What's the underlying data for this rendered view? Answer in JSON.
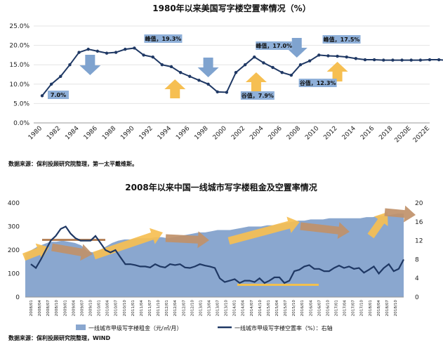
{
  "chart_data": [
    {
      "type": "line",
      "title": "1980年以来美国写字楼空置率情况（%）",
      "ylim": [
        0,
        25
      ],
      "y_ticks": [
        "0.0%",
        "5.0%",
        "10.0%",
        "15.0%",
        "20.0%",
        "25.0%"
      ],
      "x_tick_labels": [
        "1980",
        "1982",
        "1984",
        "1986",
        "1988",
        "1990",
        "1992",
        "1994",
        "1996",
        "1998",
        "2000",
        "2002",
        "2004",
        "2006",
        "2008",
        "2010",
        "2012",
        "2014",
        "2016",
        "2018",
        "2020E",
        "2022E"
      ],
      "series": [
        {
          "values": [
            7.0,
            10.0,
            12.0,
            15.0,
            18.2,
            19.0,
            18.5,
            18.0,
            18.2,
            19.0,
            19.3,
            17.5,
            17.0,
            15.0,
            14.5,
            13.0,
            12.0,
            11.0,
            10.0,
            8.0,
            7.9,
            13.0,
            15.0,
            17.0,
            15.5,
            14.3,
            13.0,
            12.3,
            15.0,
            16.0,
            17.5,
            17.3,
            17.2,
            17.0,
            16.6,
            16.3,
            16.3,
            16.2,
            16.2,
            16.2,
            16.2,
            16.2,
            16.3,
            16.3,
            16.1
          ]
        }
      ],
      "point_spacing": "half-year",
      "annotations": [
        {
          "text": "7.0%",
          "x": "1980"
        },
        {
          "text": "峰值，19.3%",
          "x": "1990"
        },
        {
          "text": "谷值，7.9%",
          "x": "2000"
        },
        {
          "text": "峰值，17.0%",
          "x": "2003"
        },
        {
          "text": "谷值，12.3%",
          "x": "2008"
        },
        {
          "text": "峰值，17.5%",
          "x": "2010"
        }
      ],
      "arrows": [
        {
          "direction": "down",
          "color": "#7fa3cf",
          "near": "1985"
        },
        {
          "direction": "up",
          "color": "#f6bf52",
          "near": "1993"
        },
        {
          "direction": "down",
          "color": "#7fa3cf",
          "near": "1998"
        },
        {
          "direction": "up",
          "color": "#f6bf52",
          "near": "2004"
        },
        {
          "direction": "down",
          "color": "#7fa3cf",
          "near": "2008"
        },
        {
          "direction": "up",
          "color": "#f6bf52",
          "near": "2014"
        }
      ],
      "source": "数据来源：保利投顾研究院整理，第一太平戴维斯。",
      "colors": {
        "line": "#1f3864",
        "label_bg": "#8fb0d9"
      }
    },
    {
      "type": "area",
      "title": "2008年以来中国一线城市写字楼租金及空置率情况",
      "ylim_left": [
        0,
        400
      ],
      "ylim_right": [
        0,
        20
      ],
      "y_ticks_left": [
        "0",
        "100",
        "200",
        "300",
        "400"
      ],
      "y_ticks_right": [
        "0",
        "4",
        "8",
        "12",
        "16",
        "20"
      ],
      "x_tick_labels": [
        "2008/01",
        "2008/04",
        "2008/07",
        "2008/10",
        "2009/01",
        "2009/04",
        "2009/07",
        "2009/10",
        "2010/01",
        "2010/04",
        "2010/07",
        "2010/10",
        "2011/01",
        "2011/04",
        "2011/07",
        "2011/10",
        "2012/01",
        "2012/04",
        "2012/07",
        "2012/10",
        "2013/01",
        "2013/04",
        "2013/07",
        "2013/10",
        "2014/01",
        "2014/04",
        "2014/07",
        "2014/10",
        "2015/01",
        "2015/04",
        "2015/07",
        "2015/10",
        "2016/01",
        "2016/04",
        "2016/07",
        "2016/10",
        "2017/01",
        "2017/04",
        "2017/07",
        "2017/10",
        "2018/01",
        "2018/04",
        "2018/07",
        "2018/10"
      ],
      "series": [
        {
          "name": "一线城市甲级写字楼租金（元/㎡/月）",
          "axis": "left",
          "values": [
            185,
            200,
            215,
            225,
            235,
            235,
            240,
            235,
            230,
            220,
            195,
            190,
            200,
            215,
            230,
            240,
            245,
            245,
            250,
            250,
            250,
            255,
            255,
            250,
            255,
            260,
            265,
            270,
            275,
            275,
            280,
            285,
            285,
            285,
            290,
            295,
            300,
            300,
            300,
            305,
            305,
            310,
            315,
            320,
            325,
            325,
            330,
            330,
            330,
            335,
            335,
            335,
            335,
            335,
            335,
            340,
            340,
            345,
            345,
            350,
            355,
            355
          ]
        },
        {
          "name": "一线城市甲级写字楼空置率（%）：右轴",
          "axis": "right",
          "values": [
            7,
            6.2,
            8,
            10,
            12,
            13,
            14.5,
            15,
            13.5,
            12.5,
            12,
            12,
            12,
            13,
            11.5,
            10,
            9.5,
            10,
            8.5,
            7,
            7,
            6.8,
            6.5,
            6.5,
            6.3,
            7,
            6.5,
            6.3,
            7,
            6.8,
            7,
            6.3,
            6.2,
            6.5,
            7,
            6.7,
            6.5,
            6.2,
            4,
            3.2,
            3.5,
            3.8,
            3,
            3.5,
            3.5,
            3.2,
            4,
            3,
            3.5,
            4.2,
            4.2,
            3,
            3.5,
            5.5,
            5.8,
            6.5,
            6.8,
            6,
            6,
            5.5,
            5.5,
            6.2,
            6.7,
            6.2,
            6.5,
            6,
            6.2,
            5.2,
            5.8,
            6.5,
            5,
            6.2,
            7,
            5.5,
            6,
            8
          ]
        }
      ],
      "source": "数据来源：保利投顾研究院整理，WIND",
      "colors": {
        "area": "#8aa7cf",
        "line": "#1f3864",
        "arrow_up": "#f6bf52",
        "arrow_brown": "#c0916a",
        "band_brown": "#b5835a",
        "band_gold": "#f2c04e"
      }
    }
  ]
}
